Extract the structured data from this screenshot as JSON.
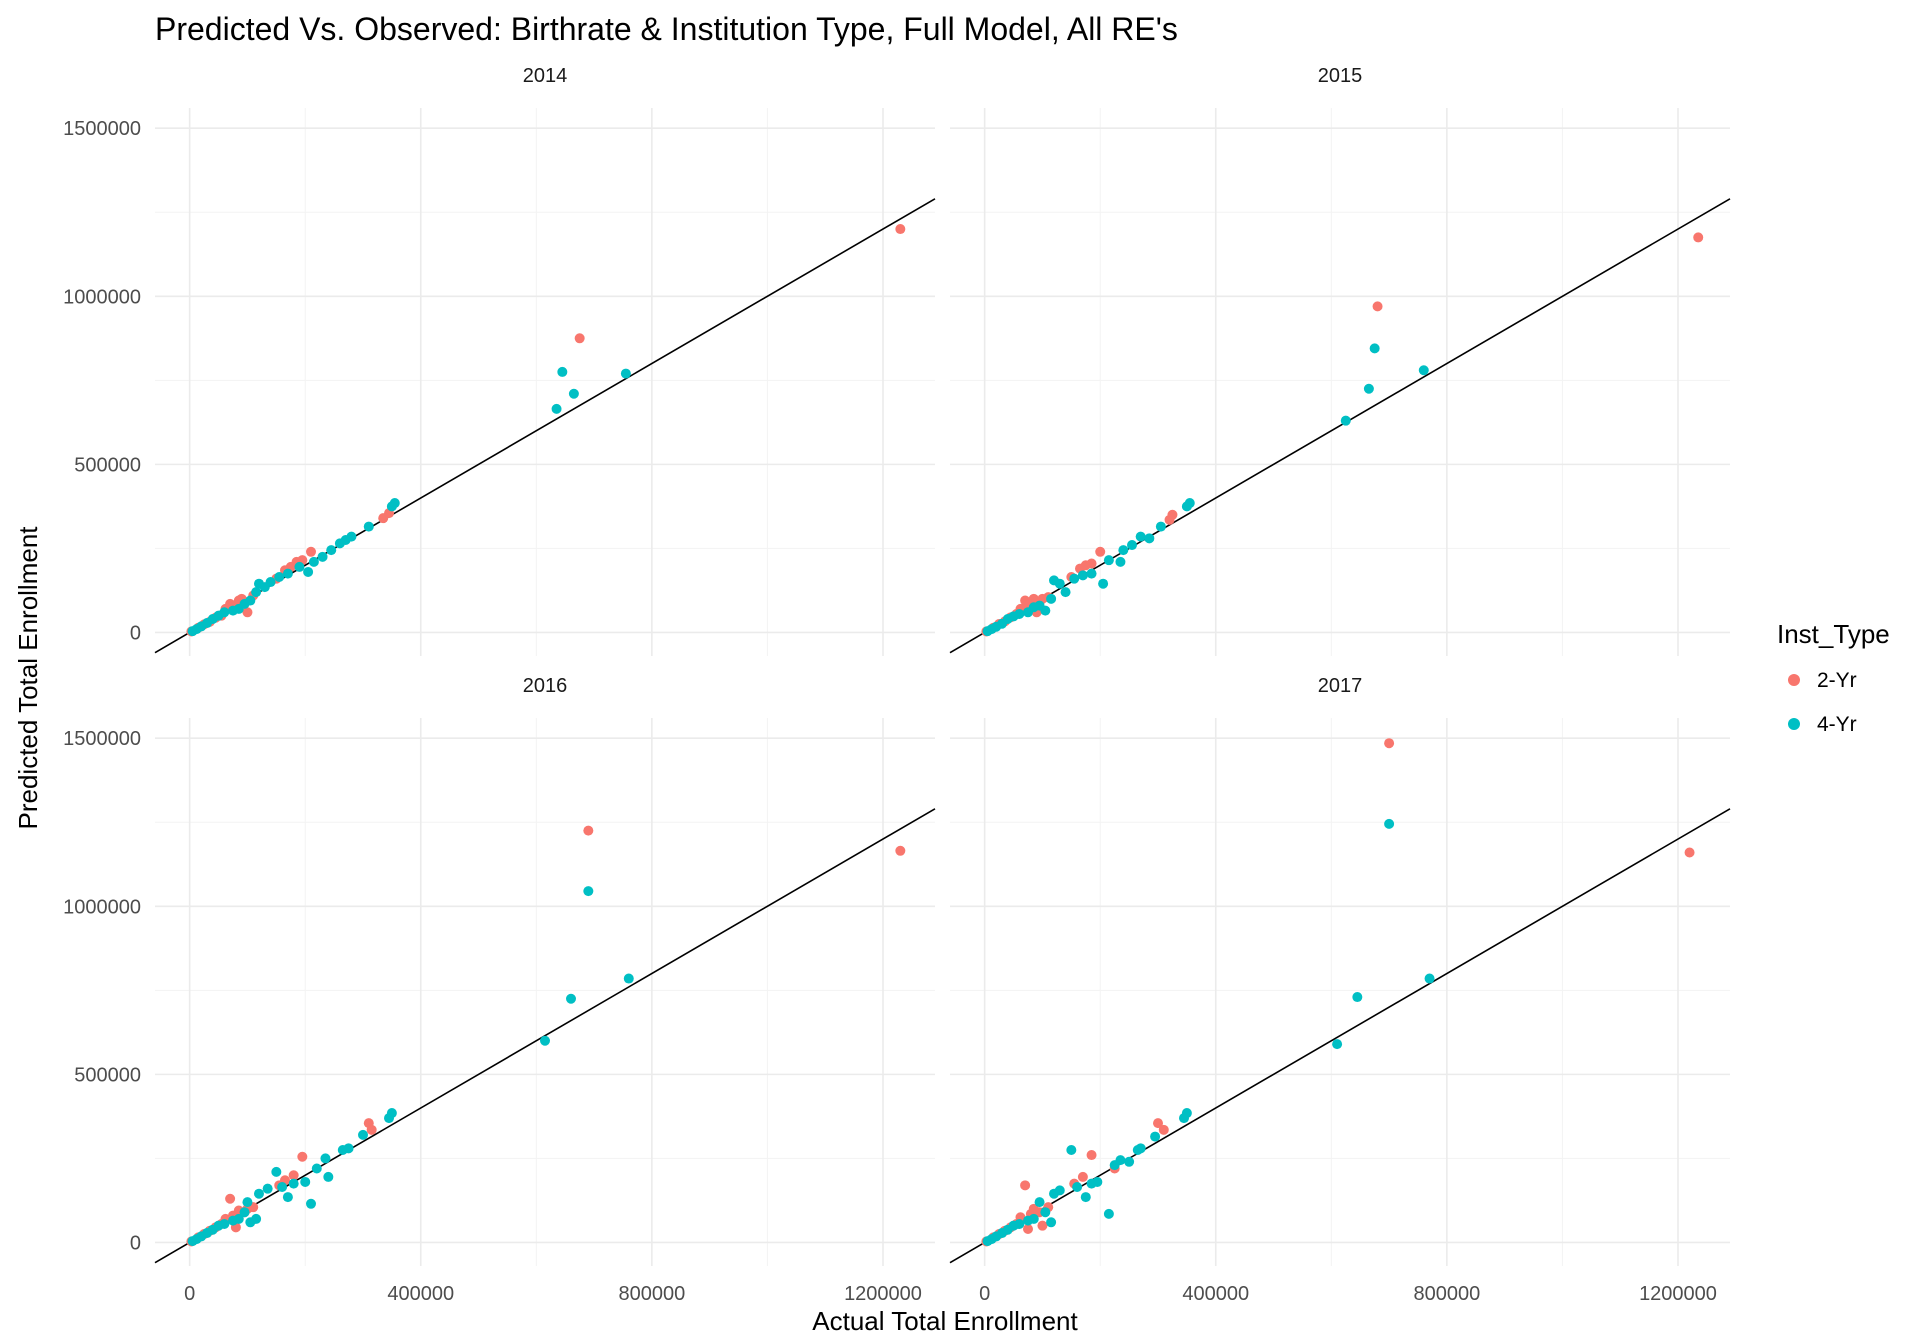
{
  "chart_data": {
    "type": "scatter",
    "title": "Predicted Vs. Observed: Birthrate & Institution Type, Full Model, All RE's",
    "xlabel": "Actual Total Enrollment",
    "ylabel": "Predicted Total Enrollment",
    "xlim": [
      -60000,
      1290000
    ],
    "ylim": [
      -70000,
      1560000
    ],
    "x_ticks": [
      0,
      400000,
      800000,
      1200000
    ],
    "x_tick_labels": [
      "0",
      "400000",
      "800000",
      "1200000"
    ],
    "y_ticks": [
      0,
      500000,
      1000000,
      1500000
    ],
    "y_tick_labels": [
      "0",
      "500000",
      "1000000",
      "1500000"
    ],
    "grid": true,
    "legend": {
      "title": "Inst_Type",
      "position": "right",
      "entries": [
        {
          "label": "2-Yr",
          "color": "#F8766D"
        },
        {
          "label": "4-Yr",
          "color": "#00BFC4"
        }
      ]
    },
    "reference_line": {
      "slope": 1,
      "intercept": 0
    },
    "facets": [
      {
        "label": "2014",
        "series": [
          {
            "name": "2-Yr",
            "color": "#F8766D",
            "points": [
              [
                3000,
                3000
              ],
              [
                15000,
                14000
              ],
              [
                25000,
                24000
              ],
              [
                35000,
                32000
              ],
              [
                45000,
                44000
              ],
              [
                55000,
                50000
              ],
              [
                62000,
                70000
              ],
              [
                70000,
                85000
              ],
              [
                75000,
                80000
              ],
              [
                85000,
                95000
              ],
              [
                90000,
                100000
              ],
              [
                95000,
                88000
              ],
              [
                100000,
                60000
              ],
              [
                110000,
                110000
              ],
              [
                150000,
                160000
              ],
              [
                165000,
                185000
              ],
              [
                175000,
                195000
              ],
              [
                185000,
                210000
              ],
              [
                195000,
                215000
              ],
              [
                210000,
                240000
              ],
              [
                335000,
                340000
              ],
              [
                345000,
                355000
              ],
              [
                675000,
                875000
              ],
              [
                1230000,
                1200000
              ]
            ]
          },
          {
            "name": "4-Yr",
            "color": "#00BFC4",
            "points": [
              [
                5000,
                4000
              ],
              [
                12000,
                10000
              ],
              [
                20000,
                18000
              ],
              [
                30000,
                28000
              ],
              [
                40000,
                40000
              ],
              [
                50000,
                50000
              ],
              [
                60000,
                60000
              ],
              [
                75000,
                65000
              ],
              [
                85000,
                70000
              ],
              [
                95000,
                85000
              ],
              [
                105000,
                95000
              ],
              [
                115000,
                120000
              ],
              [
                120000,
                145000
              ],
              [
                130000,
                135000
              ],
              [
                140000,
                150000
              ],
              [
                155000,
                165000
              ],
              [
                170000,
                175000
              ],
              [
                190000,
                195000
              ],
              [
                205000,
                180000
              ],
              [
                215000,
                210000
              ],
              [
                230000,
                225000
              ],
              [
                245000,
                245000
              ],
              [
                260000,
                265000
              ],
              [
                270000,
                275000
              ],
              [
                280000,
                285000
              ],
              [
                310000,
                315000
              ],
              [
                350000,
                375000
              ],
              [
                355000,
                385000
              ],
              [
                635000,
                665000
              ],
              [
                645000,
                775000
              ],
              [
                665000,
                710000
              ],
              [
                755000,
                770000
              ]
            ]
          }
        ]
      },
      {
        "label": "2015",
        "series": [
          {
            "name": "2-Yr",
            "color": "#F8766D",
            "points": [
              [
                3000,
                3000
              ],
              [
                15000,
                14000
              ],
              [
                25000,
                25000
              ],
              [
                35000,
                33000
              ],
              [
                45000,
                45000
              ],
              [
                55000,
                55000
              ],
              [
                62000,
                70000
              ],
              [
                70000,
                95000
              ],
              [
                75000,
                80000
              ],
              [
                85000,
                100000
              ],
              [
                90000,
                60000
              ],
              [
                95000,
                90000
              ],
              [
                100000,
                100000
              ],
              [
                110000,
                105000
              ],
              [
                150000,
                165000
              ],
              [
                165000,
                190000
              ],
              [
                175000,
                200000
              ],
              [
                185000,
                205000
              ],
              [
                200000,
                240000
              ],
              [
                320000,
                335000
              ],
              [
                325000,
                350000
              ],
              [
                680000,
                970000
              ],
              [
                1235000,
                1175000
              ]
            ]
          },
          {
            "name": "4-Yr",
            "color": "#00BFC4",
            "points": [
              [
                5000,
                4000
              ],
              [
                12000,
                10000
              ],
              [
                20000,
                17000
              ],
              [
                30000,
                26000
              ],
              [
                40000,
                40000
              ],
              [
                50000,
                48000
              ],
              [
                60000,
                55000
              ],
              [
                75000,
                60000
              ],
              [
                85000,
                75000
              ],
              [
                95000,
                80000
              ],
              [
                105000,
                65000
              ],
              [
                115000,
                100000
              ],
              [
                120000,
                155000
              ],
              [
                130000,
                145000
              ],
              [
                140000,
                120000
              ],
              [
                155000,
                160000
              ],
              [
                170000,
                170000
              ],
              [
                185000,
                175000
              ],
              [
                205000,
                145000
              ],
              [
                215000,
                215000
              ],
              [
                235000,
                210000
              ],
              [
                240000,
                245000
              ],
              [
                255000,
                260000
              ],
              [
                270000,
                285000
              ],
              [
                285000,
                280000
              ],
              [
                305000,
                315000
              ],
              [
                350000,
                375000
              ],
              [
                355000,
                385000
              ],
              [
                625000,
                630000
              ],
              [
                665000,
                725000
              ],
              [
                675000,
                845000
              ],
              [
                760000,
                780000
              ]
            ]
          }
        ]
      },
      {
        "label": "2016",
        "series": [
          {
            "name": "2-Yr",
            "color": "#F8766D",
            "points": [
              [
                3000,
                3000
              ],
              [
                15000,
                15000
              ],
              [
                25000,
                25000
              ],
              [
                35000,
                35000
              ],
              [
                45000,
                45000
              ],
              [
                55000,
                55000
              ],
              [
                62000,
                70000
              ],
              [
                70000,
                130000
              ],
              [
                75000,
                80000
              ],
              [
                80000,
                45000
              ],
              [
                85000,
                95000
              ],
              [
                95000,
                90000
              ],
              [
                100000,
                100000
              ],
              [
                110000,
                105000
              ],
              [
                155000,
                170000
              ],
              [
                165000,
                185000
              ],
              [
                180000,
                200000
              ],
              [
                195000,
                255000
              ],
              [
                310000,
                355000
              ],
              [
                315000,
                335000
              ],
              [
                690000,
                1225000
              ],
              [
                1230000,
                1165000
              ]
            ]
          },
          {
            "name": "4-Yr",
            "color": "#00BFC4",
            "points": [
              [
                5000,
                4000
              ],
              [
                12000,
                10000
              ],
              [
                20000,
                18000
              ],
              [
                30000,
                28000
              ],
              [
                40000,
                38000
              ],
              [
                50000,
                50000
              ],
              [
                60000,
                55000
              ],
              [
                75000,
                65000
              ],
              [
                85000,
                70000
              ],
              [
                95000,
                90000
              ],
              [
                100000,
                120000
              ],
              [
                105000,
                60000
              ],
              [
                115000,
                70000
              ],
              [
                120000,
                145000
              ],
              [
                135000,
                160000
              ],
              [
                150000,
                210000
              ],
              [
                160000,
                165000
              ],
              [
                170000,
                135000
              ],
              [
                180000,
                175000
              ],
              [
                200000,
                180000
              ],
              [
                210000,
                115000
              ],
              [
                220000,
                220000
              ],
              [
                235000,
                250000
              ],
              [
                240000,
                195000
              ],
              [
                265000,
                275000
              ],
              [
                275000,
                280000
              ],
              [
                300000,
                320000
              ],
              [
                345000,
                370000
              ],
              [
                350000,
                385000
              ],
              [
                615000,
                600000
              ],
              [
                660000,
                725000
              ],
              [
                690000,
                1045000
              ],
              [
                760000,
                785000
              ]
            ]
          }
        ]
      },
      {
        "label": "2017",
        "series": [
          {
            "name": "2-Yr",
            "color": "#F8766D",
            "points": [
              [
                3000,
                3000
              ],
              [
                15000,
                15000
              ],
              [
                25000,
                25000
              ],
              [
                35000,
                35000
              ],
              [
                45000,
                45000
              ],
              [
                55000,
                55000
              ],
              [
                62000,
                75000
              ],
              [
                70000,
                170000
              ],
              [
                75000,
                40000
              ],
              [
                80000,
                85000
              ],
              [
                85000,
                100000
              ],
              [
                95000,
                90000
              ],
              [
                100000,
                50000
              ],
              [
                110000,
                105000
              ],
              [
                155000,
                175000
              ],
              [
                170000,
                195000
              ],
              [
                185000,
                260000
              ],
              [
                225000,
                220000
              ],
              [
                300000,
                355000
              ],
              [
                310000,
                335000
              ],
              [
                700000,
                1485000
              ],
              [
                1220000,
                1160000
              ]
            ]
          },
          {
            "name": "4-Yr",
            "color": "#00BFC4",
            "points": [
              [
                5000,
                4000
              ],
              [
                12000,
                10000
              ],
              [
                20000,
                18000
              ],
              [
                30000,
                28000
              ],
              [
                40000,
                38000
              ],
              [
                50000,
                50000
              ],
              [
                60000,
                55000
              ],
              [
                75000,
                65000
              ],
              [
                85000,
                70000
              ],
              [
                95000,
                120000
              ],
              [
                105000,
                90000
              ],
              [
                115000,
                60000
              ],
              [
                120000,
                145000
              ],
              [
                130000,
                155000
              ],
              [
                150000,
                275000
              ],
              [
                160000,
                165000
              ],
              [
                175000,
                135000
              ],
              [
                185000,
                175000
              ],
              [
                195000,
                180000
              ],
              [
                215000,
                85000
              ],
              [
                225000,
                230000
              ],
              [
                235000,
                245000
              ],
              [
                250000,
                240000
              ],
              [
                265000,
                275000
              ],
              [
                270000,
                280000
              ],
              [
                295000,
                315000
              ],
              [
                345000,
                370000
              ],
              [
                350000,
                385000
              ],
              [
                610000,
                590000
              ],
              [
                645000,
                730000
              ],
              [
                700000,
                1245000
              ],
              [
                770000,
                785000
              ]
            ]
          }
        ]
      }
    ]
  }
}
